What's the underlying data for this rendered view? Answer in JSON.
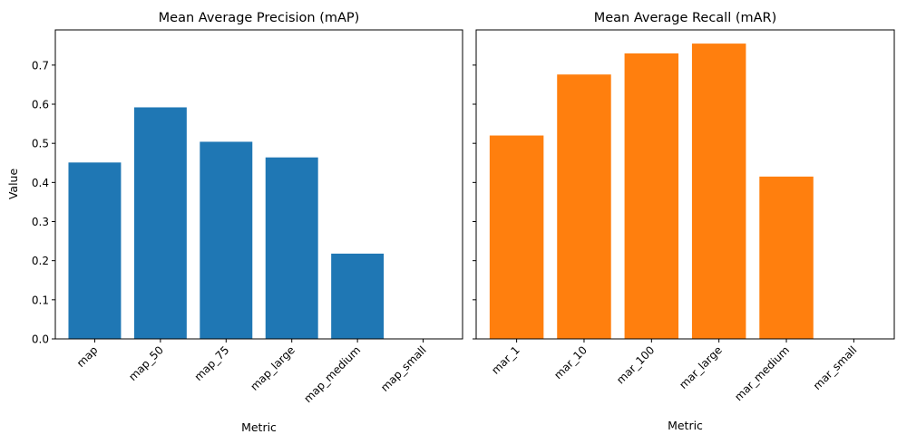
{
  "chart_data": [
    {
      "type": "bar",
      "title": "Mean Average Precision (mAP)",
      "xlabel": "Metric",
      "ylabel": "Value",
      "categories": [
        "map",
        "map_50",
        "map_75",
        "map_large",
        "map_medium",
        "map_small"
      ],
      "values": [
        0.451,
        0.592,
        0.504,
        0.464,
        0.218,
        0.0
      ],
      "ylim": [
        0,
        0.79
      ],
      "yticks": [
        "0.0",
        "0.1",
        "0.2",
        "0.3",
        "0.4",
        "0.5",
        "0.6",
        "0.7"
      ],
      "color": "#1f77b4",
      "xtick_rotation": 45
    },
    {
      "type": "bar",
      "title": "Mean Average Recall (mAR)",
      "xlabel": "Metric",
      "ylabel": "",
      "categories": [
        "mar_1",
        "mar_10",
        "mar_100",
        "mar_large",
        "mar_medium",
        "mar_small"
      ],
      "values": [
        0.52,
        0.676,
        0.73,
        0.755,
        0.415,
        0.0
      ],
      "ylim": [
        0,
        0.79
      ],
      "color": "#ff7f0e",
      "sharey": true,
      "xtick_rotation": 45
    }
  ]
}
